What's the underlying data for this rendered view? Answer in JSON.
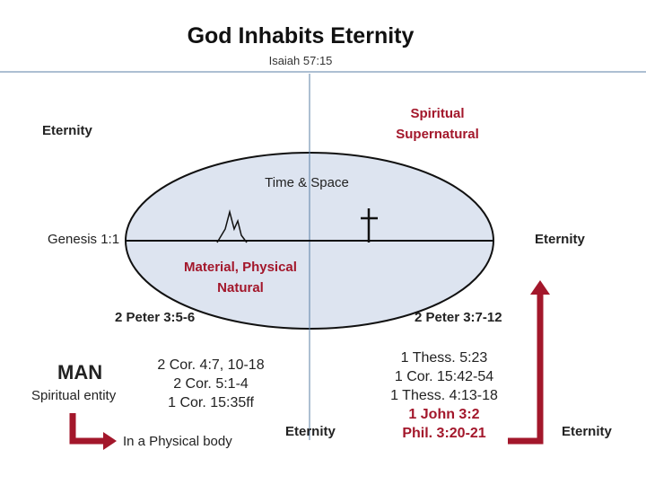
{
  "title": "God Inhabits Eternity",
  "subtitle": "Isaiah 57:15",
  "eternity_top_left": "Eternity",
  "spiritual_top": "Spiritual",
  "spiritual_bottom": "Supernatural",
  "time_space": "Time & Space",
  "genesis": "Genesis 1:1",
  "eternity_right": "Eternity",
  "material_line1": "Material, Physical",
  "material_line2": "Natural",
  "peter_left": "2 Peter 3:5-6",
  "peter_right": "2 Peter 3:7-12",
  "man": {
    "title": "MAN",
    "subtitle": "Spiritual entity",
    "body_label": "In a Physical body"
  },
  "cor_refs": [
    "2 Cor. 4:7, 10-18",
    "2 Cor. 5:1-4",
    "1 Cor. 15:35ff"
  ],
  "eternity_bottom_center": "Eternity",
  "resurrection_refs": [
    "1 Thess. 5:23",
    "1 Cor. 15:42-54",
    "1 Thess. 4:13-18"
  ],
  "resurrection_refs_highlight": [
    "1 John 3:2",
    "Phil. 3:20-21"
  ],
  "eternity_bottom_right": "Eternity",
  "colors": {
    "ellipse_fill": "#dde4f0",
    "accent_red": "#a3172b",
    "axis_blue": "#5b7fa6"
  },
  "icons": {
    "mountain": "mountain-sketch-icon",
    "cross": "cross-icon",
    "arrow_down_right": "arrow-down-right-icon",
    "arrow_up": "arrow-up-icon"
  }
}
